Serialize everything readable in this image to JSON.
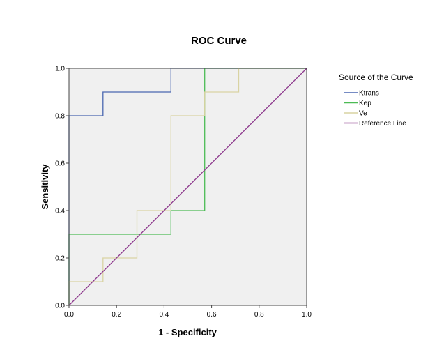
{
  "chart_data": {
    "type": "line",
    "title": "ROC Curve",
    "xlabel": "1 - Specificity",
    "ylabel": "Sensitivity",
    "xlim": [
      0,
      1
    ],
    "ylim": [
      0,
      1
    ],
    "xticks": [
      "0.0",
      "0.2",
      "0.4",
      "0.6",
      "0.8",
      "1.0"
    ],
    "yticks": [
      "0.0",
      "0.2",
      "0.4",
      "0.6",
      "0.8",
      "1.0"
    ],
    "grid": false,
    "background": "#f0f0f0",
    "legend": {
      "title": "Source of the Curve",
      "placement": "right"
    },
    "series": [
      {
        "name": "Ktrans",
        "color": "#4a67b0",
        "x": [
          0,
          0,
          0.143,
          0.143,
          0.429,
          0.429,
          1
        ],
        "y": [
          0,
          0.8,
          0.8,
          0.9,
          0.9,
          1.0,
          1.0
        ]
      },
      {
        "name": "Kep",
        "color": "#4cbb55",
        "x": [
          0,
          0,
          0.429,
          0.429,
          0.571,
          0.571,
          1
        ],
        "y": [
          0,
          0.3,
          0.3,
          0.4,
          0.4,
          1.0,
          1.0
        ]
      },
      {
        "name": "Ve",
        "color": "#d9d3a2",
        "x": [
          0,
          0,
          0.143,
          0.143,
          0.286,
          0.286,
          0.429,
          0.429,
          0.571,
          0.571,
          0.714,
          0.714,
          1
        ],
        "y": [
          0,
          0.1,
          0.1,
          0.2,
          0.2,
          0.4,
          0.4,
          0.8,
          0.8,
          0.9,
          0.9,
          1.0,
          1.0
        ]
      },
      {
        "name": "Reference Line",
        "color": "#8e3a8e",
        "x": [
          0,
          1
        ],
        "y": [
          0,
          1
        ]
      }
    ]
  }
}
